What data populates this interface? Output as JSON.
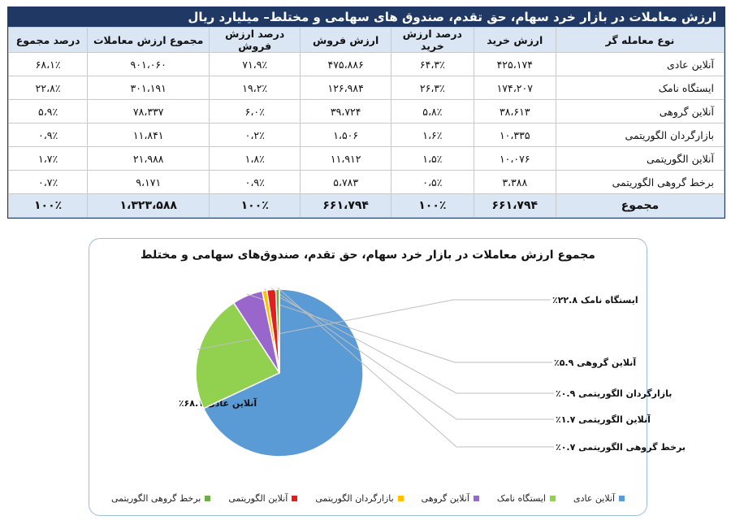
{
  "table": {
    "title": "ارزش معاملات در بازار خرد سهام، حق تقدم، صندوق های سهامی و مختلط– میلیارد ریال",
    "headers": [
      "نوع معامله گر",
      "ارزش خرید",
      "درصد ارزش خرید",
      "ارزش فروش",
      "درصد ارزش فروش",
      "مجموع ارزش معاملات",
      "درصد مجموع"
    ],
    "rows": [
      [
        "آنلاین عادی",
        "۴۲۵،۱۷۴",
        "۶۴،۳٪",
        "۴۷۵،۸۸۶",
        "۷۱،۹٪",
        "۹۰۱،۰۶۰",
        "۶۸،۱٪"
      ],
      [
        "ایستگاه نامک",
        "۱۷۴،۲۰۷",
        "۲۶،۳٪",
        "۱۲۶،۹۸۴",
        "۱۹،۲٪",
        "۳۰۱،۱۹۱",
        "۲۲،۸٪"
      ],
      [
        "آنلاین گروهی",
        "۳۸،۶۱۳",
        "۵،۸٪",
        "۳۹،۷۲۴",
        "۶،۰٪",
        "۷۸،۳۳۷",
        "۵،۹٪"
      ],
      [
        "بازارگردان الگوریتمی",
        "۱۰،۳۳۵",
        "۱،۶٪",
        "۱،۵۰۶",
        "۰،۲٪",
        "۱۱،۸۴۱",
        "۰،۹٪"
      ],
      [
        "آنلاین الگوریتمی",
        "۱۰،۰۷۶",
        "۱،۵٪",
        "۱۱،۹۱۲",
        "۱،۸٪",
        "۲۱،۹۸۸",
        "۱،۷٪"
      ],
      [
        "برخط گروهی الگوریتمی",
        "۳،۳۸۸",
        "۰،۵٪",
        "۵،۷۸۳",
        "۰،۹٪",
        "۹،۱۷۱",
        "۰،۷٪"
      ]
    ],
    "total": [
      "مجموع",
      "۶۶۱،۷۹۴",
      "۱۰۰٪",
      "۶۶۱،۷۹۴",
      "۱۰۰٪",
      "۱،۳۲۳،۵۸۸",
      "۱۰۰٪"
    ]
  },
  "chart_data": {
    "type": "pie",
    "title": "مجموع ارزش معاملات در بازار خرد سهام، حق تقدم، صندوق‌های سهامی و مختلط",
    "categories": [
      "آنلاین عادی",
      "ایستگاه نامک",
      "آنلاین گروهی",
      "بازارگردان الگوریتمی",
      "آنلاین الگوریتمی",
      "برخط گروهی الگوریتمی"
    ],
    "values": [
      68.1,
      22.8,
      5.9,
      0.9,
      1.7,
      0.7
    ],
    "colors": [
      "#5b9bd5",
      "#92d050",
      "#9966cc",
      "#ffc000",
      "#e02020",
      "#70ad47"
    ],
    "labels": [
      "آنلاین عادی ۶۸.۱٪",
      "ایستگاه نامک ۲۲.۸٪",
      "آنلاین گروهی ۵.۹٪",
      "بازارگردان الگوریتمی ۰.۹٪",
      "آنلاین الگوریتمی ۱.۷٪",
      "برخط گروهی الگوریتمی ۰.۷٪"
    ],
    "legend_position": "bottom"
  }
}
